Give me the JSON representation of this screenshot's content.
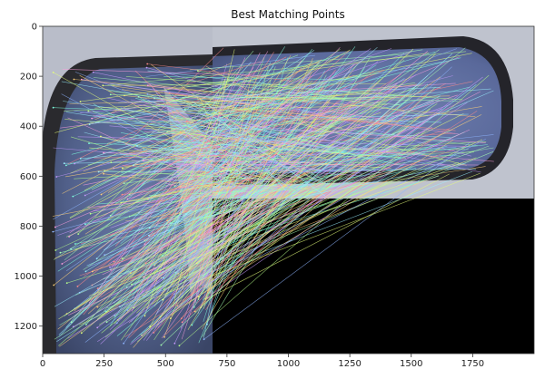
{
  "chart_data": {
    "type": "image",
    "title": "Best Matching Points",
    "xlim": [
      0,
      2000
    ],
    "ylim": [
      1310,
      0
    ],
    "xticks": [
      0,
      250,
      500,
      750,
      1000,
      1250,
      1500,
      1750
    ],
    "yticks": [
      0,
      200,
      400,
      600,
      800,
      1000,
      1200
    ],
    "xtick_labels": [
      "0",
      "250",
      "500",
      "750",
      "1000",
      "1250",
      "1500",
      "1750"
    ],
    "ytick_labels": [
      "0",
      "200",
      "400",
      "600",
      "800",
      "1000",
      "1200"
    ],
    "grid": false,
    "left_image_width": 695,
    "right_image_extent": {
      "x": [
        695,
        2000
      ],
      "y": [
        0,
        690
      ]
    },
    "match_count_shown": 520,
    "line_colors": [
      "#8fb5ff",
      "#b7ff8a",
      "#ff9fe0",
      "#7fffe0",
      "#e6ff7a",
      "#c79aff",
      "#ff8a8a",
      "#9af0ff",
      "#ffd27a",
      "#a5ffb0"
    ]
  }
}
